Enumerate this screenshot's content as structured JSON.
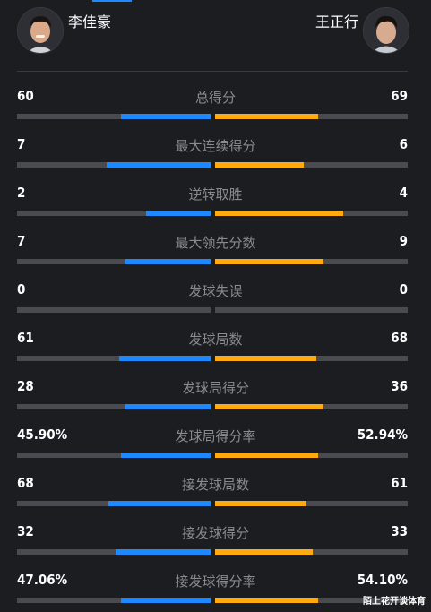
{
  "players": {
    "left": {
      "name": "李佳豪",
      "color": "#1e88ff"
    },
    "right": {
      "name": "王正行",
      "color": "#ffab0f"
    }
  },
  "stats": [
    {
      "label": "总得分",
      "left": "60",
      "right": "69",
      "left_share": 0.465,
      "right_share": 0.535
    },
    {
      "label": "最大连续得分",
      "left": "7",
      "right": "6",
      "left_share": 0.538,
      "right_share": 0.462
    },
    {
      "label": "逆转取胜",
      "left": "2",
      "right": "4",
      "left_share": 0.333,
      "right_share": 0.667
    },
    {
      "label": "最大领先分数",
      "left": "7",
      "right": "9",
      "left_share": 0.438,
      "right_share": 0.562
    },
    {
      "label": "发球失误",
      "left": "0",
      "right": "0",
      "left_share": 0,
      "right_share": 0
    },
    {
      "label": "发球局数",
      "left": "61",
      "right": "68",
      "left_share": 0.473,
      "right_share": 0.527
    },
    {
      "label": "发球局得分",
      "left": "28",
      "right": "36",
      "left_share": 0.438,
      "right_share": 0.562
    },
    {
      "label": "发球局得分率",
      "left": "45.90%",
      "right": "52.94%",
      "left_share": 0.464,
      "right_share": 0.536
    },
    {
      "label": "接发球局数",
      "left": "68",
      "right": "61",
      "left_share": 0.527,
      "right_share": 0.473
    },
    {
      "label": "接发球得分",
      "left": "32",
      "right": "33",
      "left_share": 0.492,
      "right_share": 0.508
    },
    {
      "label": "接发球得分率",
      "left": "47.06%",
      "right": "54.10%",
      "left_share": 0.465,
      "right_share": 0.535
    }
  ],
  "watermark": "陌上花开谈体育"
}
